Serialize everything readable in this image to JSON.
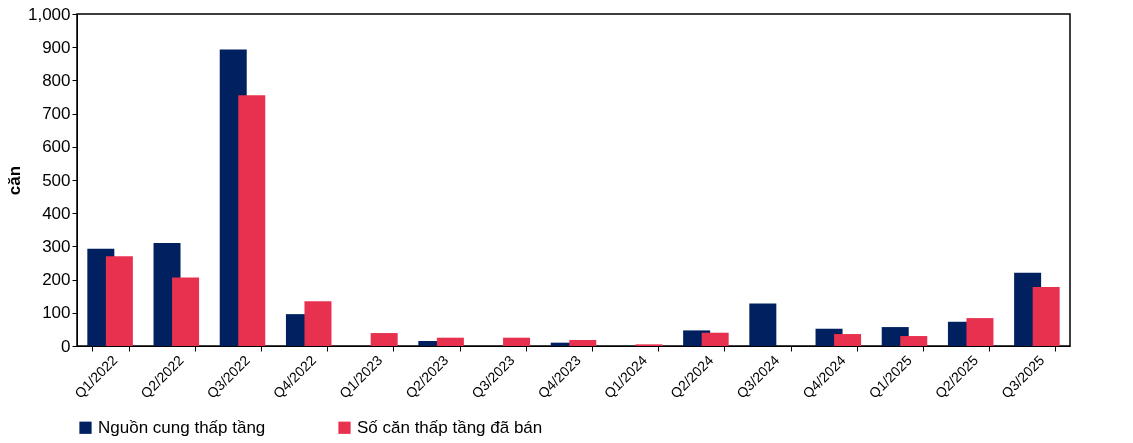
{
  "chart_data": {
    "type": "bar",
    "ylabel": "căn",
    "categories": [
      "Q1/2022",
      "Q2/2022",
      "Q3/2022",
      "Q4/2022",
      "Q1/2023",
      "Q2/2023",
      "Q3/2023",
      "Q4/2023",
      "Q1/2024",
      "Q2/2024",
      "Q3/2024",
      "Q4/2024",
      "Q1/2025",
      "Q2/2025",
      "Q3/2025"
    ],
    "series": [
      {
        "name": "Nguồn cung thấp tầng",
        "color": "#002060",
        "values": [
          293,
          310,
          893,
          96,
          0,
          15,
          0,
          10,
          0,
          47,
          128,
          52,
          57,
          73,
          221
        ]
      },
      {
        "name": "Số căn thấp tầng đã bán",
        "color": "#e8304f",
        "values": [
          270,
          206,
          755,
          135,
          39,
          25,
          25,
          18,
          5,
          40,
          0,
          36,
          30,
          84,
          178
        ]
      }
    ],
    "ylim": [
      0,
      1000
    ],
    "yticks": [
      0,
      100,
      200,
      300,
      400,
      500,
      600,
      700,
      800,
      900,
      {
        "value": 1000,
        "label": "1,000"
      }
    ],
    "grid": false,
    "legend": "bottom"
  }
}
